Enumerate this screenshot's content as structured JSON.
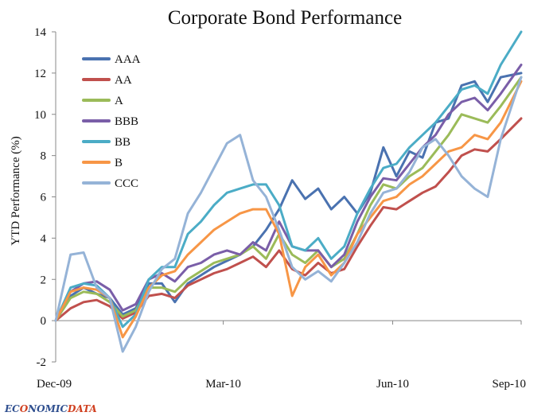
{
  "chart_data": {
    "type": "line",
    "title": "Corporate Bond Performance",
    "ylabel": "YTD Performance (%)",
    "xlabel": "",
    "ylim": [
      -2,
      14
    ],
    "yticks": [
      -2,
      0,
      2,
      4,
      6,
      8,
      10,
      12,
      14
    ],
    "xlim": [
      "2009-12-31",
      "2010-09-07"
    ],
    "xtick_labels": [
      "Dec-09",
      "Mar-10",
      "Jun-10",
      "Sep-10"
    ],
    "xtick_dates": [
      "2009-12-31",
      "2010-03-31",
      "2010-06-30",
      "2010-09-07"
    ],
    "grid": false,
    "legend_position": "top-left",
    "series": [
      {
        "name": "AAA",
        "color": "#4a72b0",
        "x": [
          "2009-12-31",
          "2010-01-08",
          "2010-01-15",
          "2010-01-22",
          "2010-01-29",
          "2010-02-05",
          "2010-02-12",
          "2010-02-19",
          "2010-02-26",
          "2010-03-05",
          "2010-03-12",
          "2010-03-19",
          "2010-03-26",
          "2010-04-02",
          "2010-04-09",
          "2010-04-16",
          "2010-04-23",
          "2010-04-30",
          "2010-05-07",
          "2010-05-14",
          "2010-05-21",
          "2010-05-28",
          "2010-06-04",
          "2010-06-11",
          "2010-06-18",
          "2010-06-25",
          "2010-07-02",
          "2010-07-09",
          "2010-07-16",
          "2010-07-23",
          "2010-07-30",
          "2010-08-06",
          "2010-08-13",
          "2010-08-20",
          "2010-08-27",
          "2010-09-07"
        ],
        "y": [
          0,
          1.2,
          1.6,
          1.3,
          1.1,
          0.3,
          0.6,
          1.8,
          1.8,
          0.9,
          1.8,
          2.2,
          2.6,
          2.9,
          3.2,
          3.6,
          4.4,
          5.4,
          6.8,
          5.9,
          6.4,
          5.4,
          6.0,
          5.2,
          6.2,
          8.4,
          7.0,
          8.2,
          7.9,
          9.6,
          9.8,
          11.4,
          11.6,
          10.6,
          11.8,
          12.0
        ]
      },
      {
        "name": "AA",
        "color": "#c0504d",
        "x": [
          "2009-12-31",
          "2010-01-08",
          "2010-01-15",
          "2010-01-22",
          "2010-01-29",
          "2010-02-05",
          "2010-02-12",
          "2010-02-19",
          "2010-02-26",
          "2010-03-05",
          "2010-03-12",
          "2010-03-19",
          "2010-03-26",
          "2010-04-02",
          "2010-04-09",
          "2010-04-16",
          "2010-04-23",
          "2010-04-30",
          "2010-05-07",
          "2010-05-14",
          "2010-05-21",
          "2010-05-28",
          "2010-06-04",
          "2010-06-11",
          "2010-06-18",
          "2010-06-25",
          "2010-07-02",
          "2010-07-09",
          "2010-07-16",
          "2010-07-23",
          "2010-07-30",
          "2010-08-06",
          "2010-08-13",
          "2010-08-20",
          "2010-08-27",
          "2010-09-07"
        ],
        "y": [
          0,
          0.6,
          0.9,
          1.0,
          0.7,
          0.1,
          0.4,
          1.2,
          1.3,
          1.1,
          1.7,
          2.0,
          2.3,
          2.5,
          2.8,
          3.1,
          2.6,
          3.4,
          2.5,
          2.2,
          2.8,
          2.3,
          2.5,
          3.6,
          4.6,
          5.5,
          5.4,
          5.8,
          6.2,
          6.5,
          7.2,
          8.0,
          8.3,
          8.2,
          8.8,
          9.8
        ]
      },
      {
        "name": "A",
        "color": "#9bbb59",
        "x": [
          "2009-12-31",
          "2010-01-08",
          "2010-01-15",
          "2010-01-22",
          "2010-01-29",
          "2010-02-05",
          "2010-02-12",
          "2010-02-19",
          "2010-02-26",
          "2010-03-05",
          "2010-03-12",
          "2010-03-19",
          "2010-03-26",
          "2010-04-02",
          "2010-04-09",
          "2010-04-16",
          "2010-04-23",
          "2010-04-30",
          "2010-05-07",
          "2010-05-14",
          "2010-05-21",
          "2010-05-28",
          "2010-06-04",
          "2010-06-11",
          "2010-06-18",
          "2010-06-25",
          "2010-07-02",
          "2010-07-09",
          "2010-07-16",
          "2010-07-23",
          "2010-07-30",
          "2010-08-06",
          "2010-08-13",
          "2010-08-20",
          "2010-08-27",
          "2010-09-07"
        ],
        "y": [
          0,
          1.1,
          1.4,
          1.3,
          0.9,
          0.2,
          0.5,
          1.6,
          1.6,
          1.4,
          2.0,
          2.4,
          2.8,
          3.0,
          3.2,
          3.6,
          3.0,
          4.2,
          3.2,
          2.8,
          3.4,
          2.6,
          3.0,
          4.2,
          5.6,
          6.6,
          6.4,
          7.0,
          7.4,
          8.2,
          9.0,
          10.0,
          9.8,
          9.6,
          10.4,
          11.8
        ]
      },
      {
        "name": "BBB",
        "color": "#7a5ea8",
        "x": [
          "2009-12-31",
          "2010-01-08",
          "2010-01-15",
          "2010-01-22",
          "2010-01-29",
          "2010-02-05",
          "2010-02-12",
          "2010-02-19",
          "2010-02-26",
          "2010-03-05",
          "2010-03-12",
          "2010-03-19",
          "2010-03-26",
          "2010-04-02",
          "2010-04-09",
          "2010-04-16",
          "2010-04-23",
          "2010-04-30",
          "2010-05-07",
          "2010-05-14",
          "2010-05-21",
          "2010-05-28",
          "2010-06-04",
          "2010-06-11",
          "2010-06-18",
          "2010-06-25",
          "2010-07-02",
          "2010-07-09",
          "2010-07-16",
          "2010-07-23",
          "2010-07-30",
          "2010-08-06",
          "2010-08-13",
          "2010-08-20",
          "2010-08-27",
          "2010-09-07"
        ],
        "y": [
          0,
          1.4,
          1.8,
          1.9,
          1.5,
          0.5,
          0.8,
          2.0,
          2.3,
          1.9,
          2.6,
          2.8,
          3.2,
          3.4,
          3.2,
          3.8,
          3.4,
          4.8,
          3.6,
          3.4,
          3.4,
          2.6,
          3.2,
          4.8,
          6.0,
          6.9,
          6.8,
          7.6,
          8.4,
          9.0,
          10.0,
          10.6,
          10.8,
          10.2,
          11.0,
          12.4
        ]
      },
      {
        "name": "BB",
        "color": "#4bacc6",
        "x": [
          "2009-12-31",
          "2010-01-08",
          "2010-01-15",
          "2010-01-22",
          "2010-01-29",
          "2010-02-05",
          "2010-02-12",
          "2010-02-19",
          "2010-02-26",
          "2010-03-05",
          "2010-03-12",
          "2010-03-19",
          "2010-03-26",
          "2010-04-02",
          "2010-04-09",
          "2010-04-16",
          "2010-04-23",
          "2010-04-30",
          "2010-05-07",
          "2010-05-14",
          "2010-05-21",
          "2010-05-28",
          "2010-06-04",
          "2010-06-11",
          "2010-06-18",
          "2010-06-25",
          "2010-07-02",
          "2010-07-09",
          "2010-07-16",
          "2010-07-23",
          "2010-07-30",
          "2010-08-06",
          "2010-08-13",
          "2010-08-20",
          "2010-08-27",
          "2010-09-07"
        ],
        "y": [
          0,
          1.6,
          1.8,
          1.7,
          1.1,
          -0.3,
          0.3,
          2.0,
          2.6,
          2.6,
          4.2,
          4.8,
          5.6,
          6.2,
          6.4,
          6.6,
          6.6,
          5.6,
          3.6,
          3.4,
          4.0,
          3.0,
          3.6,
          5.2,
          6.4,
          7.4,
          7.6,
          8.4,
          9.0,
          9.6,
          10.4,
          11.2,
          11.4,
          11.0,
          12.4,
          14.0
        ]
      },
      {
        "name": "B",
        "color": "#f79646",
        "x": [
          "2009-12-31",
          "2010-01-08",
          "2010-01-15",
          "2010-01-22",
          "2010-01-29",
          "2010-02-05",
          "2010-02-12",
          "2010-02-19",
          "2010-02-26",
          "2010-03-05",
          "2010-03-12",
          "2010-03-19",
          "2010-03-26",
          "2010-04-02",
          "2010-04-09",
          "2010-04-16",
          "2010-04-23",
          "2010-04-30",
          "2010-05-07",
          "2010-05-14",
          "2010-05-21",
          "2010-05-28",
          "2010-06-04",
          "2010-06-11",
          "2010-06-18",
          "2010-06-25",
          "2010-07-02",
          "2010-07-09",
          "2010-07-16",
          "2010-07-23",
          "2010-07-30",
          "2010-08-06",
          "2010-08-13",
          "2010-08-20",
          "2010-08-27",
          "2010-09-07"
        ],
        "y": [
          0,
          1.4,
          1.6,
          1.5,
          1.1,
          -0.8,
          0.2,
          1.6,
          2.2,
          2.4,
          3.2,
          3.8,
          4.4,
          4.8,
          5.2,
          5.4,
          5.4,
          4.2,
          1.2,
          2.6,
          3.2,
          2.2,
          2.8,
          4.2,
          5.0,
          5.8,
          6.0,
          6.6,
          7.0,
          7.6,
          8.2,
          8.4,
          9.0,
          8.8,
          9.6,
          11.6
        ]
      },
      {
        "name": "CCC",
        "color": "#95b3d7",
        "x": [
          "2009-12-31",
          "2010-01-08",
          "2010-01-15",
          "2010-01-22",
          "2010-01-29",
          "2010-02-05",
          "2010-02-12",
          "2010-02-19",
          "2010-02-26",
          "2010-03-05",
          "2010-03-12",
          "2010-03-19",
          "2010-03-26",
          "2010-04-02",
          "2010-04-09",
          "2010-04-16",
          "2010-04-23",
          "2010-04-30",
          "2010-05-07",
          "2010-05-14",
          "2010-05-21",
          "2010-05-28",
          "2010-06-04",
          "2010-06-11",
          "2010-06-18",
          "2010-06-25",
          "2010-07-02",
          "2010-07-09",
          "2010-07-16",
          "2010-07-23",
          "2010-07-30",
          "2010-08-06",
          "2010-08-13",
          "2010-08-20",
          "2010-08-27",
          "2010-09-07"
        ],
        "y": [
          0,
          3.2,
          3.3,
          1.6,
          1.1,
          -1.5,
          -0.3,
          1.4,
          2.5,
          3.0,
          5.2,
          6.2,
          7.4,
          8.6,
          9.0,
          6.8,
          6.0,
          4.4,
          2.6,
          2.0,
          2.4,
          1.9,
          2.8,
          3.8,
          5.2,
          6.2,
          6.4,
          7.2,
          8.4,
          8.8,
          8.0,
          7.0,
          6.4,
          6.0,
          8.8,
          11.8
        ]
      }
    ]
  },
  "branding": {
    "logo_text": "ECONOMICDATA",
    "logo_main": "EC",
    "logo_o": "O",
    "logo_mid": "NOMIC",
    "logo_tail": "DATA"
  }
}
